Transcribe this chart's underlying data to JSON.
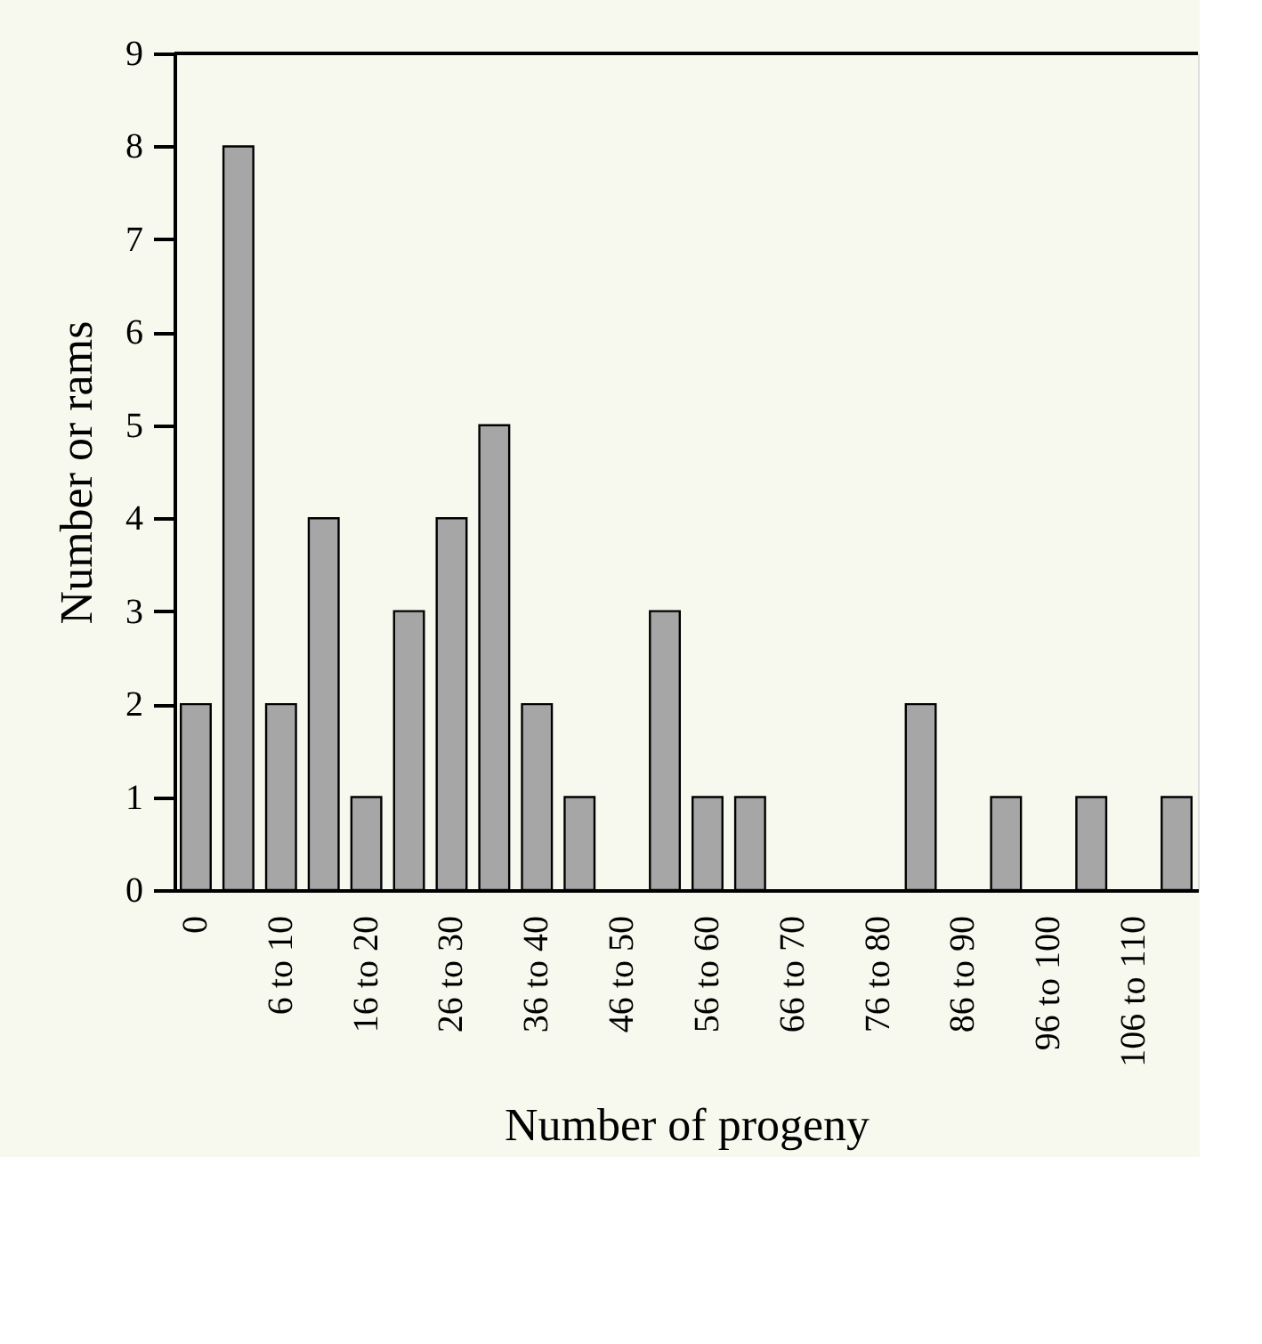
{
  "chart_data": {
    "type": "bar",
    "xlabel": "Number of progeny",
    "ylabel": "Number or rams",
    "categories": [
      "0",
      null,
      "6 to 10",
      null,
      "16 to 20",
      null,
      "26 to 30",
      null,
      "36 to 40",
      null,
      "46 to 50",
      null,
      "56 to 60",
      null,
      "66 to 70",
      null,
      "76 to 80",
      null,
      "86 to 90",
      null,
      "96 to 100",
      null,
      "106 to 110",
      null
    ],
    "values": [
      2,
      8,
      2,
      4,
      1,
      3,
      4,
      5,
      2,
      1,
      0,
      3,
      1,
      1,
      0,
      0,
      0,
      2,
      0,
      1,
      0,
      1,
      0,
      1
    ],
    "color": "#a6a6a6",
    "ylim": [
      0,
      9
    ],
    "yticks": [
      0,
      1,
      2,
      3,
      4,
      5,
      6,
      7,
      8,
      9
    ],
    "grid": false
  }
}
